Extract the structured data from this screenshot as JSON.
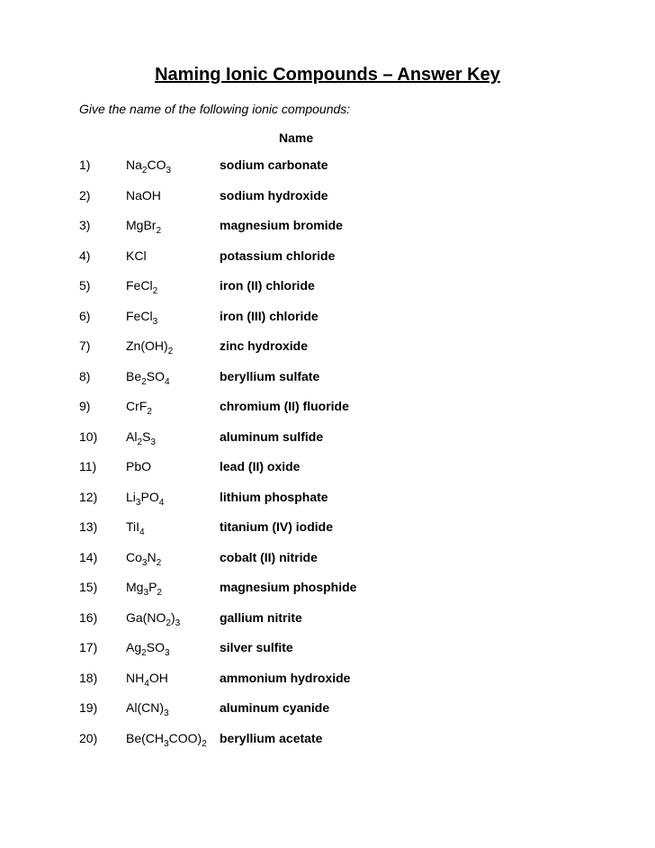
{
  "title": "Naming Ionic Compounds – Answer Key",
  "instruction": "Give the name of the following ionic compounds:",
  "name_header": "Name",
  "colors": {
    "background": "#ffffff",
    "text": "#000000"
  },
  "typography": {
    "title_fontsize": 20,
    "body_fontsize": 14,
    "font_family": "Arial"
  },
  "layout": {
    "num_col_width": 52,
    "formula_col_width": 104,
    "row_spacing": 17.5
  },
  "rows": [
    {
      "num": "1)",
      "formula_html": "Na<sub>2</sub>CO<sub>3</sub>",
      "name": "sodium carbonate"
    },
    {
      "num": "2)",
      "formula_html": "NaOH",
      "name": "sodium hydroxide"
    },
    {
      "num": "3)",
      "formula_html": "MgBr<sub>2</sub>",
      "name": "magnesium bromide"
    },
    {
      "num": "4)",
      "formula_html": "KCl",
      "name": "potassium chloride"
    },
    {
      "num": "5)",
      "formula_html": "FeCl<sub>2</sub>",
      "name": "iron (II) chloride"
    },
    {
      "num": "6)",
      "formula_html": "FeCl<sub>3</sub>",
      "name": "iron (III) chloride"
    },
    {
      "num": "7)",
      "formula_html": "Zn(OH)<sub>2</sub>",
      "name": "zinc hydroxide"
    },
    {
      "num": "8)",
      "formula_html": "Be<sub>2</sub>SO<sub>4</sub>",
      "name": "beryllium sulfate"
    },
    {
      "num": "9)",
      "formula_html": "CrF<sub>2</sub>",
      "name": "chromium (II) fluoride"
    },
    {
      "num": "10)",
      "formula_html": "Al<sub>2</sub>S<sub>3</sub>",
      "name": "aluminum sulfide"
    },
    {
      "num": "11)",
      "formula_html": "PbO",
      "name": "lead (II) oxide"
    },
    {
      "num": "12)",
      "formula_html": "Li<sub>3</sub>PO<sub>4</sub>",
      "name": "lithium phosphate"
    },
    {
      "num": "13)",
      "formula_html": "TiI<sub>4</sub>",
      "name": "titanium (IV) iodide"
    },
    {
      "num": "14)",
      "formula_html": "Co<sub>3</sub>N<sub>2</sub>",
      "name": "cobalt (II) nitride"
    },
    {
      "num": "15)",
      "formula_html": "Mg<sub>3</sub>P<sub>2</sub>",
      "name": "magnesium phosphide"
    },
    {
      "num": "16)",
      "formula_html": "Ga(NO<sub>2</sub>)<sub>3</sub>",
      "name": "gallium nitrite"
    },
    {
      "num": "17)",
      "formula_html": "Ag<sub>2</sub>SO<sub>3</sub>",
      "name": "silver sulfite"
    },
    {
      "num": "18)",
      "formula_html": "NH<sub>4</sub>OH",
      "name": "ammonium hydroxide"
    },
    {
      "num": "19)",
      "formula_html": "Al(CN)<sub>3</sub>",
      "name": "aluminum cyanide"
    },
    {
      "num": "20)",
      "formula_html": "Be(CH<sub>3</sub>COO)<sub>2</sub>",
      "name": "beryllium acetate"
    }
  ]
}
